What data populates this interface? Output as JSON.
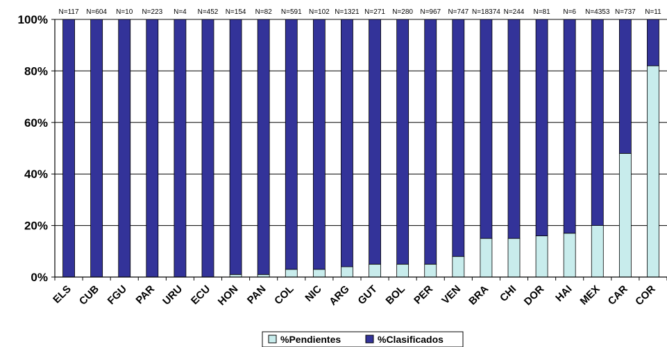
{
  "chart_data": {
    "type": "bar",
    "stacked": true,
    "categories": [
      "ELS",
      "CUB",
      "FGU",
      "PAR",
      "URU",
      "ECU",
      "HON",
      "PAN",
      "COL",
      "NIC",
      "ARG",
      "GUT",
      "BOL",
      "PER",
      "VEN",
      "BRA",
      "CHI",
      "DOR",
      "HAI",
      "MEX",
      "CAR",
      "COR"
    ],
    "top_labels": [
      "N=117",
      "N=604",
      "N=10",
      "N=223",
      "N=4",
      "N=452",
      "N=154",
      "N=82",
      "N=591",
      "N=102",
      "N=1321",
      "N=271",
      "N=280",
      "N=967",
      "N=747",
      "N=18374",
      "N=244",
      "N=81",
      "N=6",
      "N=4353",
      "N=737",
      "N=11"
    ],
    "series": [
      {
        "name": "%Pendientes",
        "color": "#c8ecec",
        "values": [
          0,
          0,
          0,
          0,
          0,
          0,
          1,
          1,
          3,
          3,
          4,
          5,
          5,
          5,
          8,
          15,
          15,
          16,
          17,
          20,
          48,
          82
        ]
      },
      {
        "name": "%Clasificados",
        "color": "#333399",
        "values": [
          100,
          100,
          100,
          100,
          100,
          100,
          99,
          99,
          97,
          97,
          96,
          95,
          95,
          95,
          92,
          85,
          85,
          84,
          83,
          80,
          52,
          18
        ]
      }
    ],
    "yticks": [
      "0%",
      "20%",
      "40%",
      "60%",
      "80%",
      "100%"
    ],
    "ylim": [
      0,
      100
    ],
    "grid": true,
    "legend_position": "bottom"
  }
}
